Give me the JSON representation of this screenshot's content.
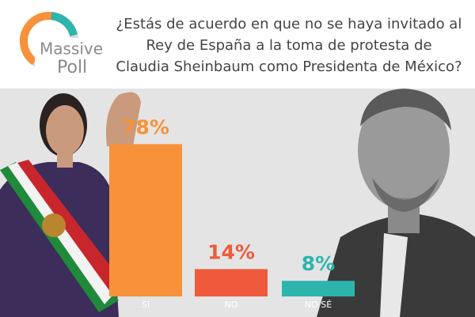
{
  "chart_data": {
    "type": "bar",
    "title_lines": [
      "¿Estás de acuerdo en que no se haya invitado al",
      "Rey de España a la toma de protesta de",
      "Claudia Sheinbaum como Presidenta de México?"
    ],
    "logo": {
      "line1": "Massive",
      "line2": "Poll"
    },
    "categories": [
      "SI",
      "NO",
      "NO SÉ"
    ],
    "values": [
      78,
      14,
      8
    ],
    "value_labels": [
      "78%",
      "14%",
      "8%"
    ],
    "colors": [
      "#f7923a",
      "#f05a3c",
      "#2cb5ad"
    ]
  }
}
